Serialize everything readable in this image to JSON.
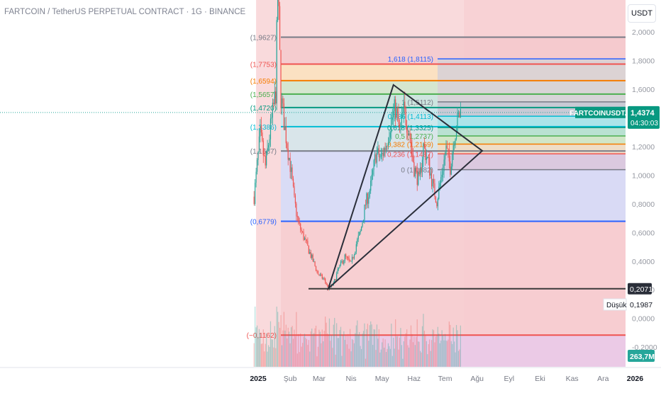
{
  "header": {
    "title": "FARTCOIN / TetherUS PERPETUAL CONTRACT · 1G · BINANCE",
    "currency": "USDT"
  },
  "colors": {
    "up": "#26a69a",
    "down": "#ef5350",
    "fib_0_618": "#2962ff",
    "fib_1": "#787b86",
    "fib_0_5": "#26a69a",
    "fib_0_382": "#f57c00"
  },
  "chart_data": {
    "type": "candlestick",
    "symbol": "FARTCOINUSDT.P",
    "interval": "1G",
    "ylim": [
      -0.3,
      2.1
    ],
    "y_ticks": [
      "2,0000",
      "1,8000",
      "1,6000",
      "1,4000",
      "1,2000",
      "1,0000",
      "0,8000",
      "0,6000",
      "0,4000",
      "0,2000",
      "0,0000",
      "-0,2000"
    ],
    "x_ticks": [
      "2025",
      "Şub",
      "Mar",
      "Nis",
      "May",
      "Haz",
      "Tem",
      "Ağu",
      "Eyl",
      "Eki",
      "Kas",
      "Ara",
      "2026"
    ],
    "close_anchors": [
      {
        "date": "2024-12-28",
        "close": 0.85
      },
      {
        "date": "2025-01-03",
        "close": 1.28
      },
      {
        "date": "2025-01-08",
        "close": 1.06
      },
      {
        "date": "2025-01-13",
        "close": 1.33
      },
      {
        "date": "2025-01-18",
        "close": 1.58
      },
      {
        "date": "2025-01-20",
        "close": 2.35
      },
      {
        "date": "2025-01-23",
        "close": 1.55
      },
      {
        "date": "2025-01-27",
        "close": 1.32
      },
      {
        "date": "2025-02-01",
        "close": 1.07
      },
      {
        "date": "2025-02-05",
        "close": 0.82
      },
      {
        "date": "2025-02-09",
        "close": 0.66
      },
      {
        "date": "2025-02-15",
        "close": 0.55
      },
      {
        "date": "2025-02-22",
        "close": 0.42
      },
      {
        "date": "2025-02-28",
        "close": 0.31
      },
      {
        "date": "2025-03-06",
        "close": 0.27
      },
      {
        "date": "2025-03-10",
        "close": 0.21
      },
      {
        "date": "2025-03-15",
        "close": 0.24
      },
      {
        "date": "2025-03-20",
        "close": 0.35
      },
      {
        "date": "2025-03-26",
        "close": 0.43
      },
      {
        "date": "2025-04-01",
        "close": 0.38
      },
      {
        "date": "2025-04-06",
        "close": 0.52
      },
      {
        "date": "2025-04-10",
        "close": 0.6
      },
      {
        "date": "2025-04-15",
        "close": 0.8
      },
      {
        "date": "2025-04-20",
        "close": 0.92
      },
      {
        "date": "2025-04-25",
        "close": 1.15
      },
      {
        "date": "2025-04-30",
        "close": 1.12
      },
      {
        "date": "2025-05-05",
        "close": 1.22
      },
      {
        "date": "2025-05-09",
        "close": 1.36
      },
      {
        "date": "2025-05-14",
        "close": 1.47
      },
      {
        "date": "2025-05-18",
        "close": 1.3
      },
      {
        "date": "2025-05-22",
        "close": 1.45
      },
      {
        "date": "2025-05-27",
        "close": 1.32
      },
      {
        "date": "2025-06-01",
        "close": 1.05
      },
      {
        "date": "2025-06-06",
        "close": 0.95
      },
      {
        "date": "2025-06-10",
        "close": 1.2
      },
      {
        "date": "2025-06-15",
        "close": 1.08
      },
      {
        "date": "2025-06-20",
        "close": 0.9
      },
      {
        "date": "2025-06-23",
        "close": 0.82
      },
      {
        "date": "2025-06-27",
        "close": 0.98
      },
      {
        "date": "2025-07-02",
        "close": 1.18
      },
      {
        "date": "2025-07-06",
        "close": 1.06
      },
      {
        "date": "2025-07-10",
        "close": 1.28
      },
      {
        "date": "2025-07-14",
        "close": 1.4
      },
      {
        "date": "2025-07-16",
        "close": 1.44
      }
    ],
    "fib_left": [
      {
        "label": "(1,9627)",
        "value": 1.9627,
        "color": "#787b86"
      },
      {
        "label": "(1,7753)",
        "value": 1.7753,
        "color": "#ef5350"
      },
      {
        "label": "(1,6594)",
        "value": 1.6594,
        "color": "#f57c00"
      },
      {
        "label": "(1,5657)",
        "value": 1.5657,
        "color": "#4caf50"
      },
      {
        "label": "(1,4720)",
        "value": 1.472,
        "color": "#089981"
      },
      {
        "label": "(1,3386)",
        "value": 1.3386,
        "color": "#00bcd4"
      },
      {
        "label": "(1,1687)",
        "value": 1.1687,
        "color": "#787b86"
      },
      {
        "label": "(0,6779)",
        "value": 0.6779,
        "color": "#2962ff"
      },
      {
        "label": "(−0,1162)",
        "value": -0.1162,
        "color": "#ef5350"
      }
    ],
    "fib_right": [
      {
        "label": "1,618 (1,8115)",
        "value": 1.8115,
        "color": "#2962ff"
      },
      {
        "label": "1 (1,5112)",
        "value": 1.5112,
        "color": "#787b86"
      },
      {
        "label": "0,786 (1,4113)",
        "value": 1.4113,
        "color": "#00bcd4"
      },
      {
        "label": "0,618 (1,3325)",
        "value": 1.3325,
        "color": "#089981"
      },
      {
        "label": "0,5 (1,2737)",
        "value": 1.2737,
        "color": "#4caf50"
      },
      {
        "label": "0,382 (1,2169)",
        "value": 1.2169,
        "color": "#f57c00"
      },
      {
        "label": "0,236 (1,1487)",
        "value": 1.1487,
        "color": "#ef5350"
      },
      {
        "label": "0 (1,0382)",
        "value": 1.0382,
        "color": "#787b86"
      }
    ],
    "support_line": 0.2071,
    "triangle": [
      {
        "date": "2025-05-12",
        "price": 1.63
      },
      {
        "date": "2025-08-06",
        "price": 1.17
      },
      {
        "date": "2025-03-10",
        "price": 0.21
      }
    ],
    "price_tag": {
      "symbol": "FARTCOINUSDT.P",
      "value": "1,4374",
      "countdown": "04:30:03",
      "price": 1.4374
    },
    "low_tag": {
      "label": "Düşük",
      "value": "0,1987",
      "support_value": "0,2071"
    },
    "volume_tag": "263,7M"
  }
}
